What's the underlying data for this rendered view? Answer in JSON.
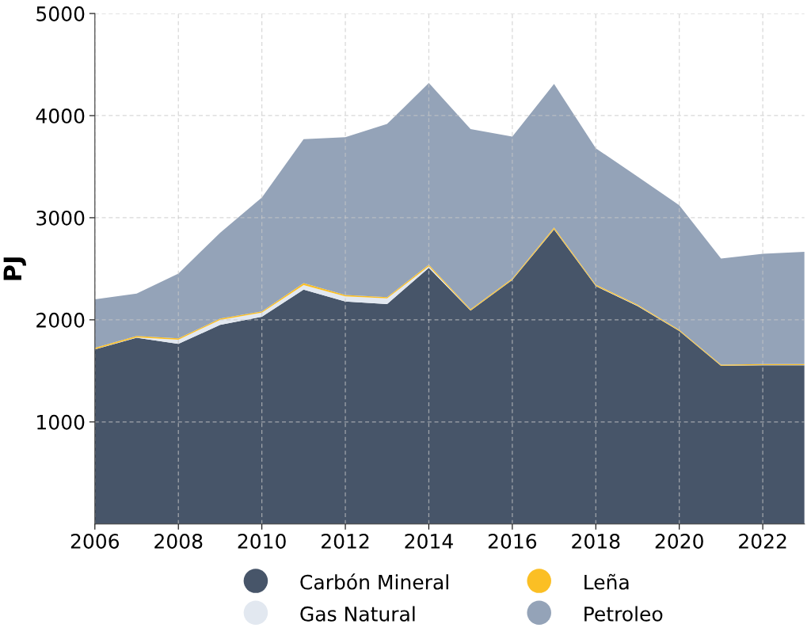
{
  "chart_data": {
    "type": "area",
    "stacked": true,
    "ylabel": "PJ",
    "x": [
      2006,
      2007,
      2008,
      2009,
      2010,
      2011,
      2012,
      2013,
      2014,
      2015,
      2016,
      2017,
      2018,
      2019,
      2020,
      2021,
      2022,
      2023
    ],
    "series": [
      {
        "name": "Carbón Mineral",
        "color": "#475569",
        "values": [
          1710,
          1825,
          1765,
          1950,
          2030,
          2295,
          2180,
          2155,
          2510,
          2090,
          2390,
          2885,
          2330,
          2135,
          1890,
          1550,
          1555,
          1555
        ]
      },
      {
        "name": "Gas Natural",
        "color": "#e2e8f0",
        "values": [
          2,
          3,
          40,
          50,
          40,
          45,
          50,
          55,
          15,
          3,
          3,
          5,
          3,
          3,
          2,
          2,
          2,
          2
        ]
      },
      {
        "name": "Leña",
        "color": "#fbbf24",
        "values": [
          14,
          14,
          13,
          13,
          13,
          20,
          13,
          13,
          15,
          10,
          12,
          15,
          12,
          10,
          10,
          9,
          9,
          9
        ]
      },
      {
        "name": "Petroleo",
        "color": "#94a3b8",
        "values": [
          475,
          415,
          635,
          840,
          1115,
          1410,
          1545,
          1695,
          1780,
          1765,
          1390,
          1405,
          1335,
          1255,
          1220,
          1040,
          1080,
          1100
        ]
      }
    ],
    "xlim": [
      2006,
      2023
    ],
    "xticks": [
      2006,
      2008,
      2010,
      2012,
      2014,
      2016,
      2018,
      2020,
      2022
    ],
    "ylim": [
      0,
      5000
    ],
    "yticks": [
      1000,
      2000,
      3000,
      4000,
      5000
    ],
    "grid": true,
    "legend": "bottom"
  }
}
